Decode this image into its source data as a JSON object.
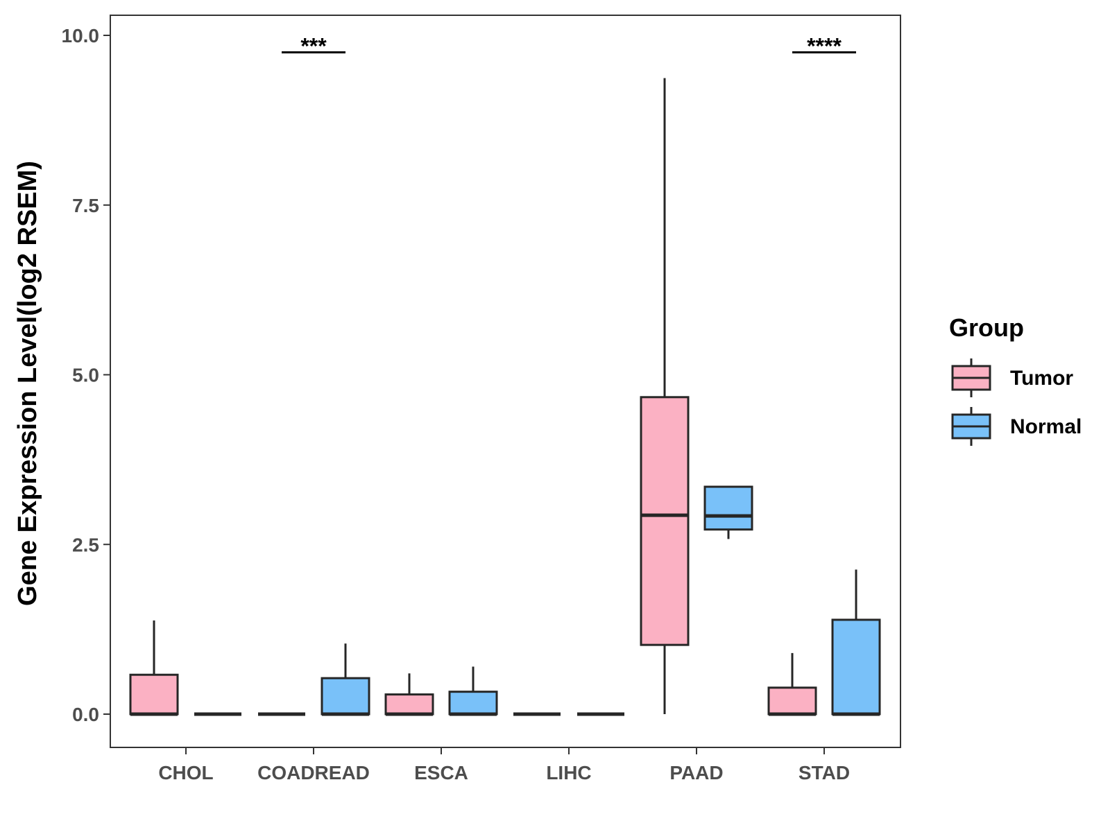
{
  "chart_data": {
    "type": "boxplot",
    "title": "",
    "xlabel": "",
    "ylabel": "Gene Expression Level(log2 RSEM)",
    "ylim": [
      -0.48,
      10.3
    ],
    "yticks": [
      0,
      2.5,
      5,
      7.5,
      10
    ],
    "ytick_labels": [
      "0.0",
      "2.5",
      "5.0",
      "7.5",
      "10.0"
    ],
    "grid": false,
    "categories": [
      "CHOL",
      "COADREAD",
      "ESCA",
      "LIHC",
      "PAAD",
      "STAD"
    ],
    "legend": {
      "title": "Group",
      "position": "right",
      "entries": [
        {
          "label": "Tumor",
          "color": "#FBB1C3"
        },
        {
          "label": "Normal",
          "color": "#79C1F9"
        }
      ]
    },
    "series": [
      {
        "name": "Tumor",
        "color": "#FBB1C3",
        "boxes": [
          {
            "category": "CHOL",
            "min": 0,
            "q1": 0,
            "median": 0,
            "q3": 0.58,
            "max": 1.38
          },
          {
            "category": "COADREAD",
            "min": 0,
            "q1": 0,
            "median": 0,
            "q3": 0,
            "max": 0
          },
          {
            "category": "ESCA",
            "min": 0,
            "q1": 0,
            "median": 0,
            "q3": 0.29,
            "max": 0.6
          },
          {
            "category": "LIHC",
            "min": 0,
            "q1": 0,
            "median": 0,
            "q3": 0,
            "max": 0
          },
          {
            "category": "PAAD",
            "min": 0,
            "q1": 1.02,
            "median": 2.93,
            "q3": 4.67,
            "max": 9.37
          },
          {
            "category": "STAD",
            "min": 0,
            "q1": 0,
            "median": 0,
            "q3": 0.39,
            "max": 0.9
          }
        ]
      },
      {
        "name": "Normal",
        "color": "#79C1F9",
        "boxes": [
          {
            "category": "CHOL",
            "min": 0,
            "q1": 0,
            "median": 0,
            "q3": 0,
            "max": 0
          },
          {
            "category": "COADREAD",
            "min": 0,
            "q1": 0,
            "median": 0,
            "q3": 0.53,
            "max": 1.04
          },
          {
            "category": "ESCA",
            "min": 0,
            "q1": 0,
            "median": 0,
            "q3": 0.33,
            "max": 0.7
          },
          {
            "category": "LIHC",
            "min": 0,
            "q1": 0,
            "median": 0,
            "q3": 0,
            "max": 0
          },
          {
            "category": "PAAD",
            "min": 2.58,
            "q1": 2.72,
            "median": 2.92,
            "q3": 3.35,
            "max": 3.35
          },
          {
            "category": "STAD",
            "min": 0,
            "q1": 0,
            "median": 0,
            "q3": 1.39,
            "max": 2.13
          }
        ]
      }
    ],
    "annotations": [
      {
        "category": "COADREAD",
        "label": "***",
        "y": 9.75
      },
      {
        "category": "STAD",
        "label": "****",
        "y": 9.75
      }
    ]
  }
}
